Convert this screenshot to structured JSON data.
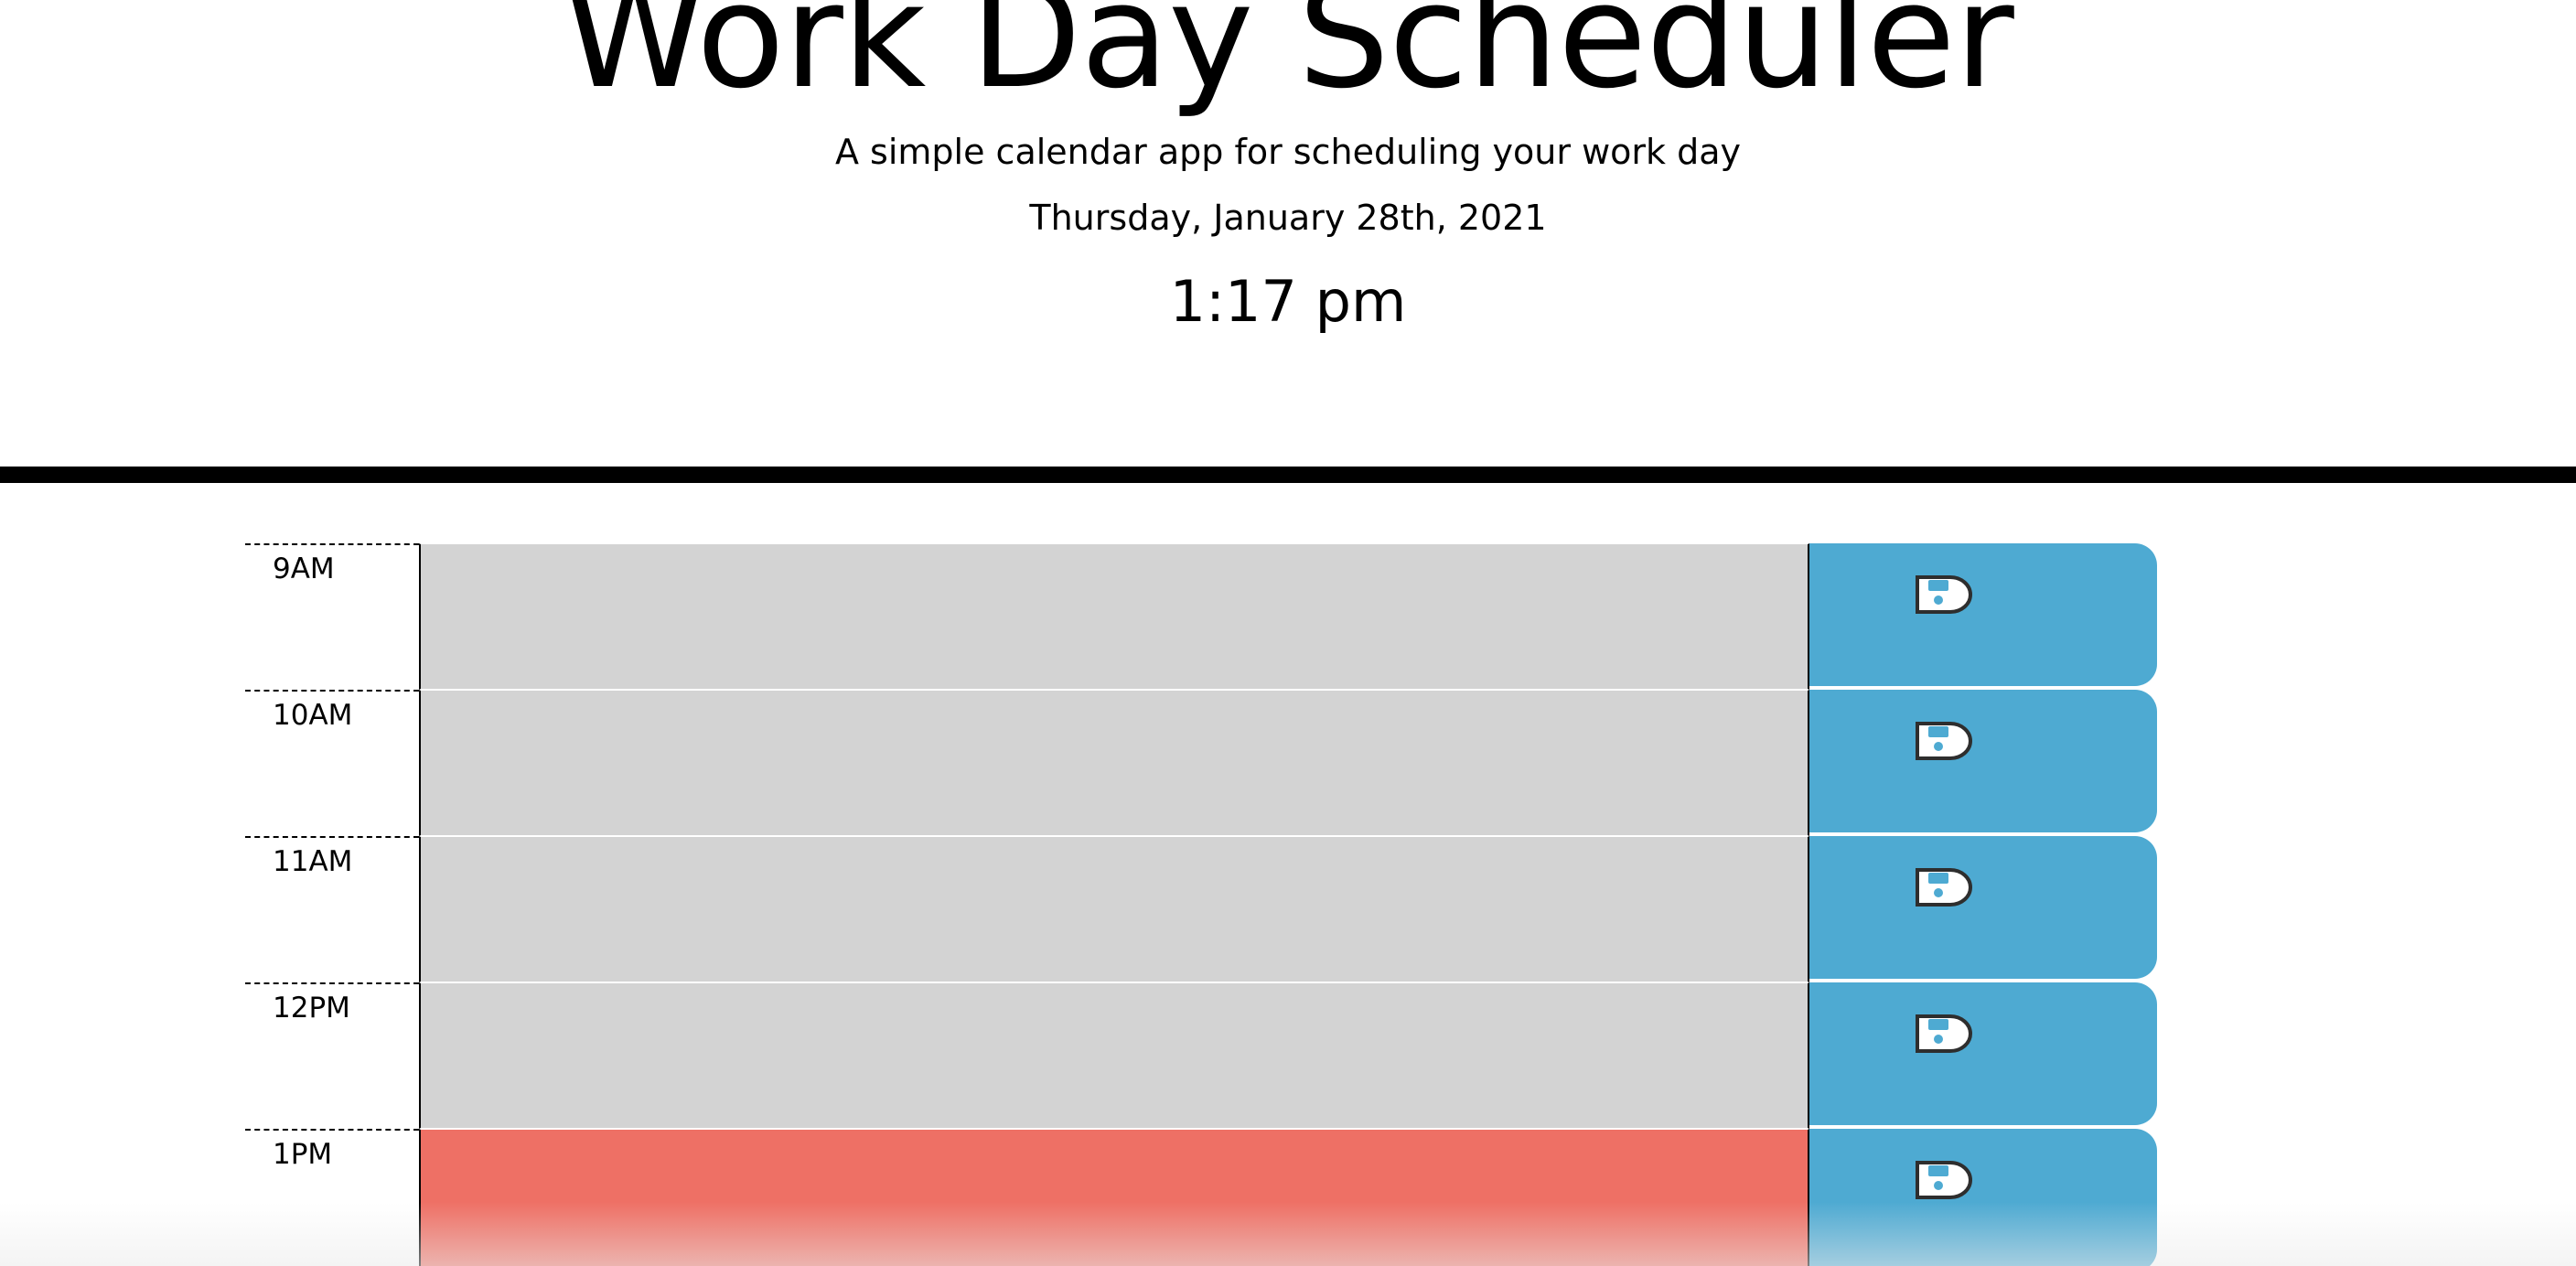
{
  "header": {
    "title": "Work Day Scheduler",
    "subtitle": "A simple calendar app for scheduling your work day",
    "date": "Thursday, January 28th, 2021",
    "time": "1:17 pm"
  },
  "colors": {
    "past": "#d3d3d3",
    "present": "#ee7065",
    "save_button": "#4eaad2",
    "header_border": "#000000"
  },
  "time_blocks": [
    {
      "hour": "9AM",
      "description": "",
      "status": "past",
      "save_icon": "floppy-disk-icon"
    },
    {
      "hour": "10AM",
      "description": "",
      "status": "past",
      "save_icon": "floppy-disk-icon"
    },
    {
      "hour": "11AM",
      "description": "",
      "status": "past",
      "save_icon": "floppy-disk-icon"
    },
    {
      "hour": "12PM",
      "description": "",
      "status": "past",
      "save_icon": "floppy-disk-icon"
    },
    {
      "hour": "1PM",
      "description": "",
      "status": "present",
      "save_icon": "floppy-disk-icon"
    }
  ]
}
